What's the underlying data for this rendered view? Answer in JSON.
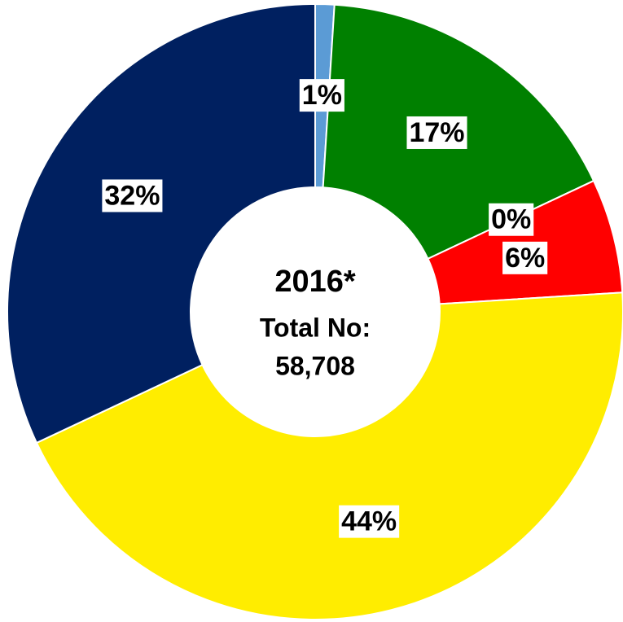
{
  "chart_data": {
    "type": "donut",
    "values": [
      1,
      17,
      0,
      6,
      44,
      32
    ],
    "value_labels": [
      "1%",
      "17%",
      "0%",
      "6%",
      "44%",
      "32%"
    ],
    "colors": [
      "#5b9bd5",
      "#008000",
      "#a9d18e",
      "#ff0000",
      "#ffed00",
      "#002060"
    ],
    "center_text": [
      "2016*",
      "Total No:",
      "58,708"
    ]
  }
}
